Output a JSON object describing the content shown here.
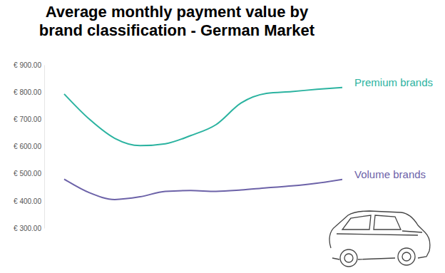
{
  "chart_data": {
    "type": "line",
    "title": "Average monthly payment value by brand classification - German Market",
    "categories": [
      null,
      null,
      null,
      null,
      null,
      null,
      null,
      null,
      null,
      null,
      null,
      null
    ],
    "series": [
      {
        "name": "Premium brands",
        "color": "#2bb3a0",
        "values": [
          793,
          700,
          630,
          603,
          610,
          640,
          680,
          760,
          795,
          802,
          810,
          817
        ]
      },
      {
        "name": "Volume brands",
        "color": "#6c62a8",
        "values": [
          480,
          430,
          405,
          415,
          435,
          438,
          435,
          440,
          448,
          455,
          465,
          479
        ]
      }
    ],
    "ylim": [
      300,
      900
    ],
    "yticks": [
      {
        "value": 300,
        "label": "€ 300.00"
      },
      {
        "value": 400,
        "label": "€ 400.00"
      },
      {
        "value": 500,
        "label": "€ 500.00"
      },
      {
        "value": 600,
        "label": "€ 600.00"
      },
      {
        "value": 700,
        "label": "€ 700.00"
      },
      {
        "value": 800,
        "label": "€ 800.00"
      },
      {
        "value": 900,
        "label": "€ 900.00"
      }
    ],
    "grid": false,
    "tick_labels": "y"
  }
}
